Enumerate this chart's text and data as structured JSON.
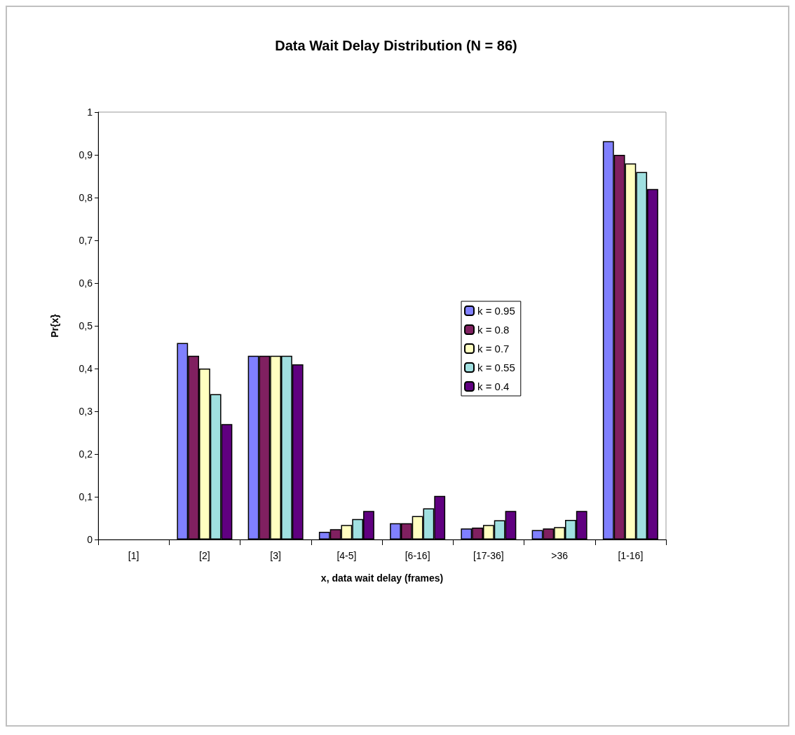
{
  "chart_data": {
    "type": "bar",
    "title": "Data Wait Delay Distribution (N = 86)",
    "xlabel": "x, data wait delay (frames)",
    "ylabel": "Pr{x}",
    "categories": [
      "[1]",
      "[2]",
      "[3]",
      "[4-5]",
      "[6-16]",
      "[17-36]",
      ">36",
      "[1-16]"
    ],
    "series": [
      {
        "name": "k = 0.95",
        "color": "#8080ff",
        "values": [
          0,
          0.46,
          0.43,
          0.018,
          0.038,
          0.026,
          0.022,
          0.932
        ]
      },
      {
        "name": "k = 0.8",
        "color": "#802060",
        "values": [
          0,
          0.43,
          0.43,
          0.024,
          0.038,
          0.028,
          0.026,
          0.9
        ]
      },
      {
        "name": "k = 0.7",
        "color": "#ffffc0",
        "values": [
          0,
          0.4,
          0.43,
          0.034,
          0.055,
          0.034,
          0.029,
          0.88
        ]
      },
      {
        "name": "k = 0.55",
        "color": "#a0e0e0",
        "values": [
          0,
          0.34,
          0.43,
          0.048,
          0.073,
          0.045,
          0.046,
          0.86
        ]
      },
      {
        "name": "k = 0.4",
        "color": "#600080",
        "values": [
          0,
          0.27,
          0.41,
          0.067,
          0.102,
          0.067,
          0.067,
          0.82
        ]
      }
    ],
    "ylim": [
      0,
      1
    ],
    "yticks": [
      0,
      {
        "value": 0.1,
        "label": "0,1"
      },
      {
        "value": 0.2,
        "label": "0,2"
      },
      {
        "value": 0.3,
        "label": "0,3"
      },
      {
        "value": 0.4,
        "label": "0,4"
      },
      {
        "value": 0.5,
        "label": "0,5"
      },
      {
        "value": 0.6,
        "label": "0,6"
      },
      {
        "value": 0.7,
        "label": "0,7"
      },
      {
        "value": 0.8,
        "label": "0,8"
      },
      {
        "value": 0.9,
        "label": "0,9"
      },
      1
    ],
    "grid": false,
    "legend": "right"
  }
}
